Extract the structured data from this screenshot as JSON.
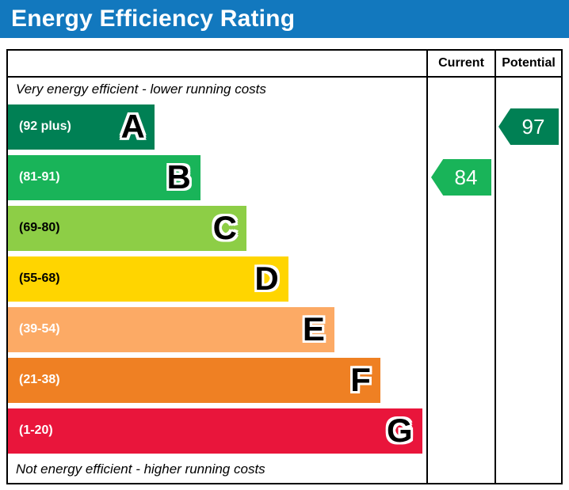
{
  "header": {
    "title": "Energy Efficiency Rating",
    "bg_color": "#1278be"
  },
  "table": {
    "columns": {
      "current_label": "Current",
      "potential_label": "Potential"
    },
    "top_note": "Very energy efficient - lower running costs",
    "bottom_note": "Not energy efficient - higher running costs",
    "bands": [
      {
        "letter": "A",
        "range": "(92 plus)",
        "color": "#008054",
        "text_color": "#ffffff",
        "width_pct": 35
      },
      {
        "letter": "B",
        "range": "(81-91)",
        "color": "#19b459",
        "text_color": "#ffffff",
        "width_pct": 46
      },
      {
        "letter": "C",
        "range": "(69-80)",
        "color": "#8dce46",
        "text_color": "#000000",
        "width_pct": 57
      },
      {
        "letter": "D",
        "range": "(55-68)",
        "color": "#ffd500",
        "text_color": "#000000",
        "width_pct": 67
      },
      {
        "letter": "E",
        "range": "(39-54)",
        "color": "#fcaa65",
        "text_color": "#ffffff",
        "width_pct": 78
      },
      {
        "letter": "F",
        "range": "(21-38)",
        "color": "#ef8023",
        "text_color": "#ffffff",
        "width_pct": 89
      },
      {
        "letter": "G",
        "range": "(1-20)",
        "color": "#e9153b",
        "text_color": "#ffffff",
        "width_pct": 99
      }
    ],
    "current": {
      "value": "84",
      "band_index": 1,
      "color": "#19b459"
    },
    "potential": {
      "value": "97",
      "band_index": 0,
      "color": "#008054"
    }
  },
  "chart_data": {
    "type": "bar",
    "title": "Energy Efficiency Rating",
    "categories": [
      "A (92 plus)",
      "B (81-91)",
      "C (69-80)",
      "D (55-68)",
      "E (39-54)",
      "F (21-38)",
      "G (1-20)"
    ],
    "values": [
      35,
      46,
      57,
      67,
      78,
      89,
      99
    ],
    "values_note": "fixed decorative band bar widths (% of plot width)",
    "band_colors": [
      "#008054",
      "#19b459",
      "#8dce46",
      "#ffd500",
      "#fcaa65",
      "#ef8023",
      "#e9153b"
    ],
    "annotations": [
      {
        "label": "Current",
        "value": 84,
        "band": "B",
        "color": "#19b459"
      },
      {
        "label": "Potential",
        "value": 97,
        "band": "A",
        "color": "#008054"
      }
    ],
    "top_note": "Very energy efficient - lower running costs",
    "bottom_note": "Not energy efficient - higher running costs",
    "grid": false,
    "legend_position": "none"
  }
}
